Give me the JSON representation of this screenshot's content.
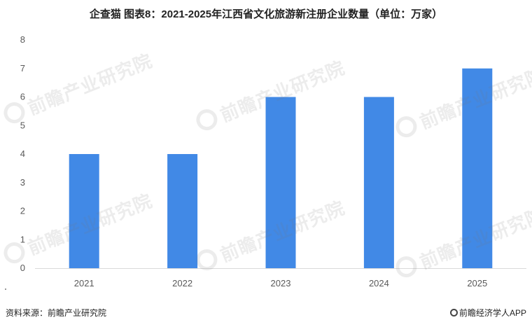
{
  "chart_data": {
    "type": "bar",
    "title": "企查猫 图表8：2021-2025年江西省文化旅游新注册企业数量（单位：万家）",
    "categories": [
      "2021",
      "2022",
      "2023",
      "2024",
      "2025"
    ],
    "values": [
      4,
      4,
      6,
      6,
      7
    ],
    "xlabel": "",
    "ylabel": "",
    "ylim": [
      0,
      8
    ],
    "yticks": [
      0,
      1,
      2,
      3,
      4,
      5,
      6,
      7,
      8
    ],
    "grid": false,
    "legend": "none",
    "bar_color": "#4189E6",
    "axis_color": "#D9D9D9"
  },
  "watermark": {
    "text": "前瞻产业研究院"
  },
  "footer": {
    "source": "资料来源：前瞻产业研究院",
    "brand": "前瞻经济学人APP"
  }
}
